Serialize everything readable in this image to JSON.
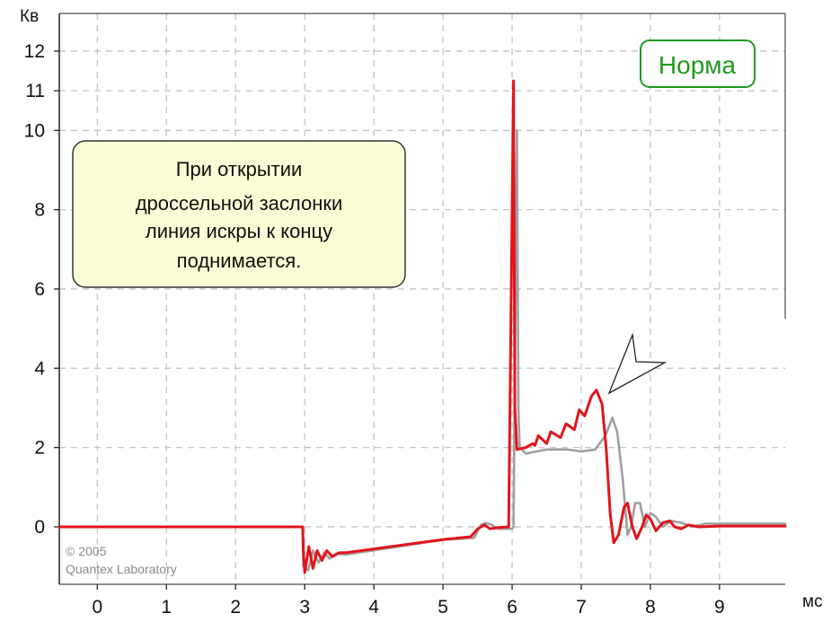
{
  "chart_data": {
    "type": "line",
    "xlabel": "мс",
    "ylabel": "Кв",
    "xlim": [
      -0.55,
      9.95
    ],
    "ylim": [
      -1.45,
      12.95
    ],
    "xticks": [
      "0",
      "1",
      "2",
      "3",
      "4",
      "5",
      "6",
      "7",
      "8",
      "9"
    ],
    "yticks": [
      {
        "value": 0,
        "label": "0"
      },
      {
        "value": 2,
        "label": "2"
      },
      {
        "value": 4,
        "label": "4"
      },
      {
        "value": 6,
        "label": "6"
      },
      {
        "value": 8,
        "label": "8"
      },
      {
        "value": 10,
        "label": "10"
      },
      {
        "value": 11,
        "label": "11"
      },
      {
        "value": 12,
        "label": "12"
      }
    ],
    "grid": true,
    "series": [
      {
        "color": "#a0a0a0",
        "points": [
          [
            -0.55,
            0
          ],
          [
            2.97,
            0
          ],
          [
            2.98,
            -1.0
          ],
          [
            3.05,
            -1.1
          ],
          [
            3.12,
            -0.6
          ],
          [
            3.2,
            -0.9
          ],
          [
            3.28,
            -0.65
          ],
          [
            3.36,
            -0.8
          ],
          [
            3.45,
            -0.68
          ],
          [
            3.6,
            -0.7
          ],
          [
            5.0,
            -0.33
          ],
          [
            5.45,
            -0.28
          ],
          [
            5.55,
            0.05
          ],
          [
            5.62,
            0.1
          ],
          [
            5.7,
            0.05
          ],
          [
            5.8,
            -0.05
          ],
          [
            6.0,
            -0.05
          ],
          [
            6.02,
            0
          ],
          [
            6.07,
            10.0
          ],
          [
            6.09,
            3.0
          ],
          [
            6.11,
            2.0
          ],
          [
            6.2,
            1.85
          ],
          [
            6.35,
            1.9
          ],
          [
            6.5,
            1.95
          ],
          [
            6.8,
            1.95
          ],
          [
            7.0,
            1.9
          ],
          [
            7.2,
            1.95
          ],
          [
            7.35,
            2.3
          ],
          [
            7.45,
            2.75
          ],
          [
            7.52,
            2.4
          ],
          [
            7.6,
            1.2
          ],
          [
            7.67,
            -0.2
          ],
          [
            7.72,
            0.0
          ],
          [
            7.78,
            0.6
          ],
          [
            7.85,
            0.6
          ],
          [
            7.92,
            0.0
          ],
          [
            8.0,
            0.35
          ],
          [
            8.08,
            0.25
          ],
          [
            8.18,
            0.0
          ],
          [
            8.3,
            0.15
          ],
          [
            8.45,
            0.1
          ],
          [
            8.6,
            0.0
          ],
          [
            8.8,
            0.08
          ],
          [
            9.95,
            0.08
          ]
        ]
      },
      {
        "color": "#e2141b",
        "points": [
          [
            -0.55,
            0
          ],
          [
            2.97,
            0
          ],
          [
            2.98,
            -0.6
          ],
          [
            3.0,
            -1.15
          ],
          [
            3.06,
            -0.5
          ],
          [
            3.12,
            -1.05
          ],
          [
            3.18,
            -0.6
          ],
          [
            3.25,
            -0.85
          ],
          [
            3.32,
            -0.6
          ],
          [
            3.4,
            -0.75
          ],
          [
            3.5,
            -0.65
          ],
          [
            3.6,
            -0.65
          ],
          [
            5.0,
            -0.32
          ],
          [
            5.4,
            -0.25
          ],
          [
            5.5,
            -0.05
          ],
          [
            5.6,
            0.05
          ],
          [
            5.68,
            -0.05
          ],
          [
            5.8,
            -0.02
          ],
          [
            5.95,
            0
          ],
          [
            6.02,
            11.25
          ],
          [
            6.04,
            3.0
          ],
          [
            6.07,
            1.95
          ],
          [
            6.2,
            2.0
          ],
          [
            6.3,
            2.1
          ],
          [
            6.33,
            2.05
          ],
          [
            6.38,
            2.3
          ],
          [
            6.5,
            2.1
          ],
          [
            6.56,
            2.4
          ],
          [
            6.7,
            2.25
          ],
          [
            6.78,
            2.6
          ],
          [
            6.9,
            2.45
          ],
          [
            6.97,
            2.95
          ],
          [
            7.05,
            2.8
          ],
          [
            7.15,
            3.3
          ],
          [
            7.22,
            3.45
          ],
          [
            7.3,
            3.1
          ],
          [
            7.36,
            2.0
          ],
          [
            7.42,
            0.3
          ],
          [
            7.47,
            -0.4
          ],
          [
            7.54,
            -0.2
          ],
          [
            7.62,
            0.5
          ],
          [
            7.67,
            0.6
          ],
          [
            7.74,
            0.0
          ],
          [
            7.8,
            -0.3
          ],
          [
            7.88,
            0.0
          ],
          [
            7.94,
            0.3
          ],
          [
            8.0,
            0.2
          ],
          [
            8.08,
            -0.1
          ],
          [
            8.18,
            0.1
          ],
          [
            8.28,
            0.15
          ],
          [
            8.35,
            0.0
          ],
          [
            8.45,
            -0.05
          ],
          [
            8.55,
            0.05
          ],
          [
            8.7,
            0.0
          ],
          [
            9.0,
            0.02
          ],
          [
            9.95,
            0.02
          ]
        ]
      }
    ]
  },
  "callout": {
    "lines": [
      "При открытии",
      "дроссельной заслонки",
      "линия искры к концу",
      "поднимается."
    ]
  },
  "badge": {
    "text": "Норма",
    "color": "#1f9a1f"
  },
  "copyright": {
    "lines": [
      "© 2005",
      "Quantex Laboratory"
    ]
  },
  "pointer": {
    "target": [
      7.3,
      4.1
    ]
  }
}
